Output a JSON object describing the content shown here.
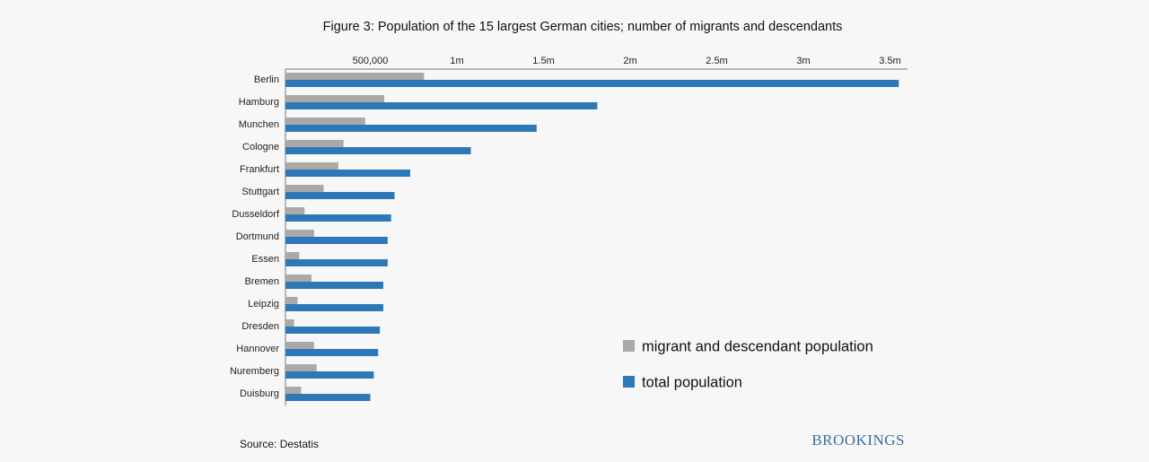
{
  "chart_data": {
    "type": "bar",
    "orientation": "horizontal",
    "title": "Figure 3: Population of the 15 largest German cities; number of migrants and descendants",
    "categories": [
      "Berlin",
      "Hamburg",
      "Munchen",
      "Cologne",
      "Frankfurt",
      "Stuttgart",
      "Dusseldorf",
      "Dortmund",
      "Essen",
      "Bremen",
      "Leipzig",
      "Dresden",
      "Hannover",
      "Nuremberg",
      "Duisburg"
    ],
    "series": [
      {
        "name": "migrant and descendant population",
        "color": "#a9a9a9",
        "values": [
          800000,
          570000,
          460000,
          335000,
          305000,
          220000,
          110000,
          165000,
          80000,
          150000,
          70000,
          50000,
          165000,
          180000,
          90000
        ]
      },
      {
        "name": "total population",
        "color": "#2f78b8",
        "values": [
          3540000,
          1800000,
          1450000,
          1070000,
          720000,
          630000,
          610000,
          590000,
          590000,
          565000,
          565000,
          545000,
          535000,
          510000,
          490000
        ]
      }
    ],
    "x_ticks": [
      {
        "value": 500000,
        "label": "500,000"
      },
      {
        "value": 1000000,
        "label": "1m"
      },
      {
        "value": 1500000,
        "label": "1.5m"
      },
      {
        "value": 2000000,
        "label": "2m"
      },
      {
        "value": 2500000,
        "label": "2.5m"
      },
      {
        "value": 3000000,
        "label": "3m"
      },
      {
        "value": 3500000,
        "label": "3.5m"
      }
    ],
    "xlim": [
      0,
      3600000
    ],
    "xlabel": "",
    "ylabel": "",
    "legend_position": "bottom-right",
    "grid": false,
    "source": "Source: Destatis",
    "brand": "BROOKINGS",
    "brand_color": "#3a6ea5"
  }
}
